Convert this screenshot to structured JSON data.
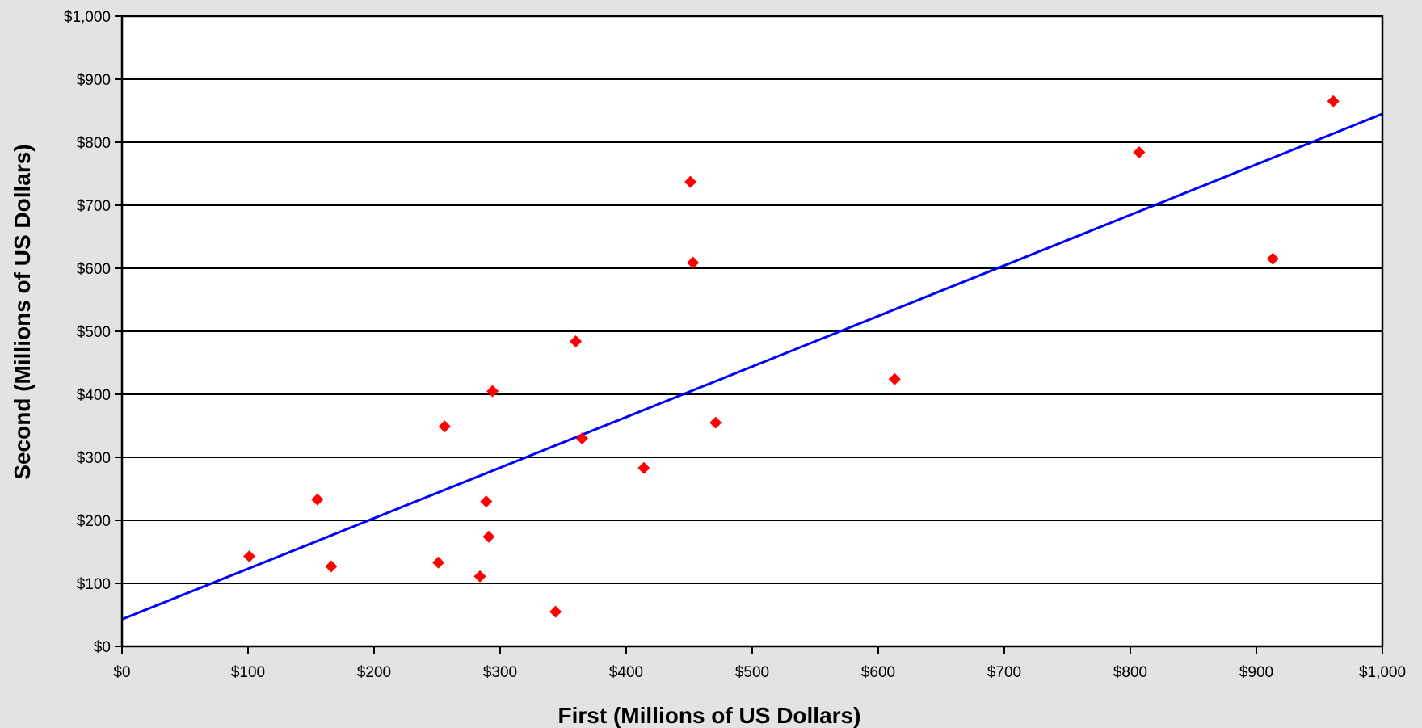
{
  "chart_data": {
    "type": "scatter",
    "title": "",
    "xlabel": "First (Millions of US Dollars)",
    "ylabel": "Second (Millions of US Dollars)",
    "xlim": [
      0,
      1000
    ],
    "ylim": [
      0,
      1000
    ],
    "x_ticks": [
      0,
      100,
      200,
      300,
      400,
      500,
      600,
      700,
      800,
      900,
      1000
    ],
    "y_ticks": [
      0,
      100,
      200,
      300,
      400,
      500,
      600,
      700,
      800,
      900,
      1000
    ],
    "x_tick_labels": [
      "$0",
      "$100",
      "$200",
      "$300",
      "$400",
      "$500",
      "$600",
      "$700",
      "$800",
      "$900",
      "$1,000"
    ],
    "y_tick_labels": [
      "$0",
      "$100",
      "$200",
      "$300",
      "$400",
      "$500",
      "$600",
      "$700",
      "$800",
      "$900",
      "$1,000"
    ],
    "grid": "horizontal",
    "series": [
      {
        "type": "scatter",
        "color": "#ff0000",
        "marker": "diamond",
        "points": [
          {
            "x": 101,
            "y": 143
          },
          {
            "x": 155,
            "y": 233
          },
          {
            "x": 166,
            "y": 127
          },
          {
            "x": 251,
            "y": 133
          },
          {
            "x": 256,
            "y": 349
          },
          {
            "x": 284,
            "y": 111
          },
          {
            "x": 289,
            "y": 230
          },
          {
            "x": 291,
            "y": 174
          },
          {
            "x": 294,
            "y": 405
          },
          {
            "x": 344,
            "y": 55
          },
          {
            "x": 360,
            "y": 484
          },
          {
            "x": 365,
            "y": 330
          },
          {
            "x": 414,
            "y": 283
          },
          {
            "x": 451,
            "y": 737
          },
          {
            "x": 453,
            "y": 609
          },
          {
            "x": 471,
            "y": 355
          },
          {
            "x": 613,
            "y": 424
          },
          {
            "x": 807,
            "y": 784
          },
          {
            "x": 913,
            "y": 615
          },
          {
            "x": 961,
            "y": 865
          }
        ]
      },
      {
        "type": "line",
        "color": "#0000ff",
        "points": [
          {
            "x": 0,
            "y": 43
          },
          {
            "x": 1000,
            "y": 845
          }
        ]
      }
    ]
  }
}
